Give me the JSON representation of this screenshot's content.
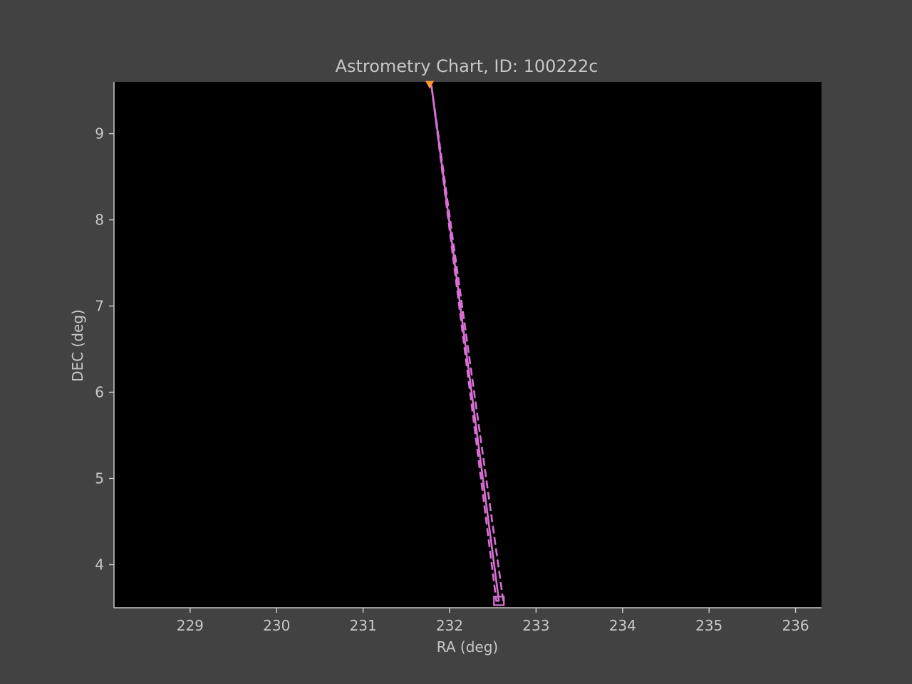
{
  "chart_data": {
    "type": "line",
    "title": "Astrometry Chart, ID: 100222c",
    "xlabel": "RA (deg)",
    "ylabel": "DEC (deg)",
    "xlim": [
      228.12,
      236.3
    ],
    "ylim": [
      3.5,
      9.6
    ],
    "xticks": [
      229,
      230,
      231,
      232,
      233,
      234,
      235,
      236
    ],
    "yticks": [
      4,
      5,
      6,
      7,
      8,
      9
    ],
    "grid": false,
    "background": "#000000",
    "figure_background": "#424242",
    "series": [
      {
        "style": "solid",
        "color": "#da70d6",
        "x": [
          231.79,
          232.57
        ],
        "y": [
          9.56,
          3.58
        ]
      },
      {
        "style": "dashed",
        "color": "#da70d6",
        "x": [
          231.79,
          232.62,
          232.54,
          231.79
        ],
        "y": [
          9.56,
          3.58,
          3.58,
          9.56
        ]
      }
    ],
    "markers": [
      {
        "shape": "triangle",
        "color": "#ff9933",
        "x": 231.77,
        "y": 9.57
      },
      {
        "shape": "square",
        "color": "#da70d6",
        "x": 232.57,
        "y": 3.58
      }
    ]
  }
}
